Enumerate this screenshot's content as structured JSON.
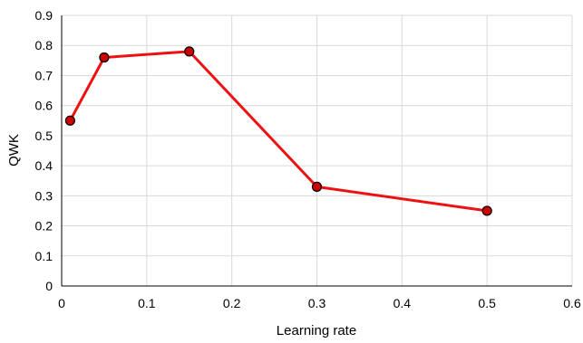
{
  "chart_data": {
    "type": "line",
    "xlabel": "Learning rate",
    "ylabel": "QWK",
    "xlim": [
      0,
      0.6
    ],
    "ylim": [
      0,
      0.9
    ],
    "x_ticks": [
      "0",
      "0.1",
      "0.2",
      "0.3",
      "0.4",
      "0.5",
      "0.6"
    ],
    "y_ticks": [
      "0",
      "0.1",
      "0.2",
      "0.3",
      "0.4",
      "0.5",
      "0.6",
      "0.7",
      "0.8",
      "0.9"
    ],
    "grid": true,
    "legend": "none",
    "series": [
      {
        "color": "#ee1111",
        "marker_fill": "#cc0000",
        "marker_edge": "#000000",
        "x": [
          0.01,
          0.05,
          0.15,
          0.3,
          0.5
        ],
        "y": [
          0.55,
          0.76,
          0.78,
          0.33,
          0.25
        ]
      }
    ]
  }
}
